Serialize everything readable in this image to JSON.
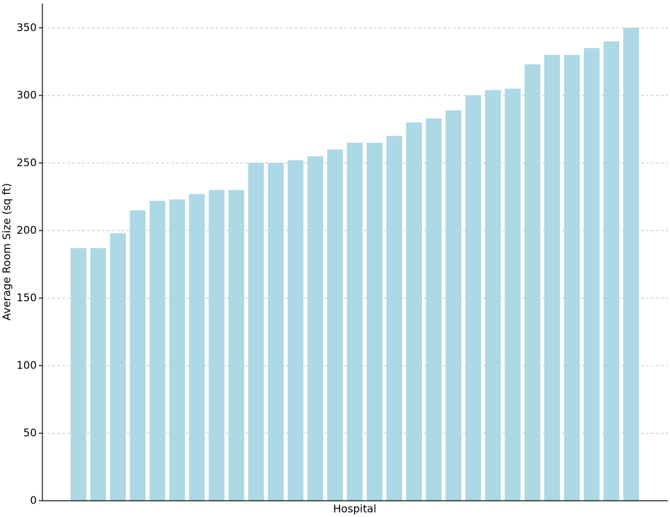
{
  "chart_data": {
    "type": "bar",
    "xlabel": "Hospital",
    "ylabel": "Average Room Size (sq ft)",
    "values": [
      187,
      187,
      198,
      215,
      222,
      223,
      227,
      230,
      230,
      250,
      250,
      252,
      255,
      260,
      265,
      265,
      270,
      280,
      283,
      289,
      300,
      304,
      305,
      323,
      330,
      330,
      335,
      340,
      350
    ],
    "color": "#add8e6",
    "ylim": [
      0,
      368
    ],
    "yticks": [
      0,
      50,
      100,
      150,
      200,
      250,
      300,
      350
    ],
    "grid": true
  }
}
